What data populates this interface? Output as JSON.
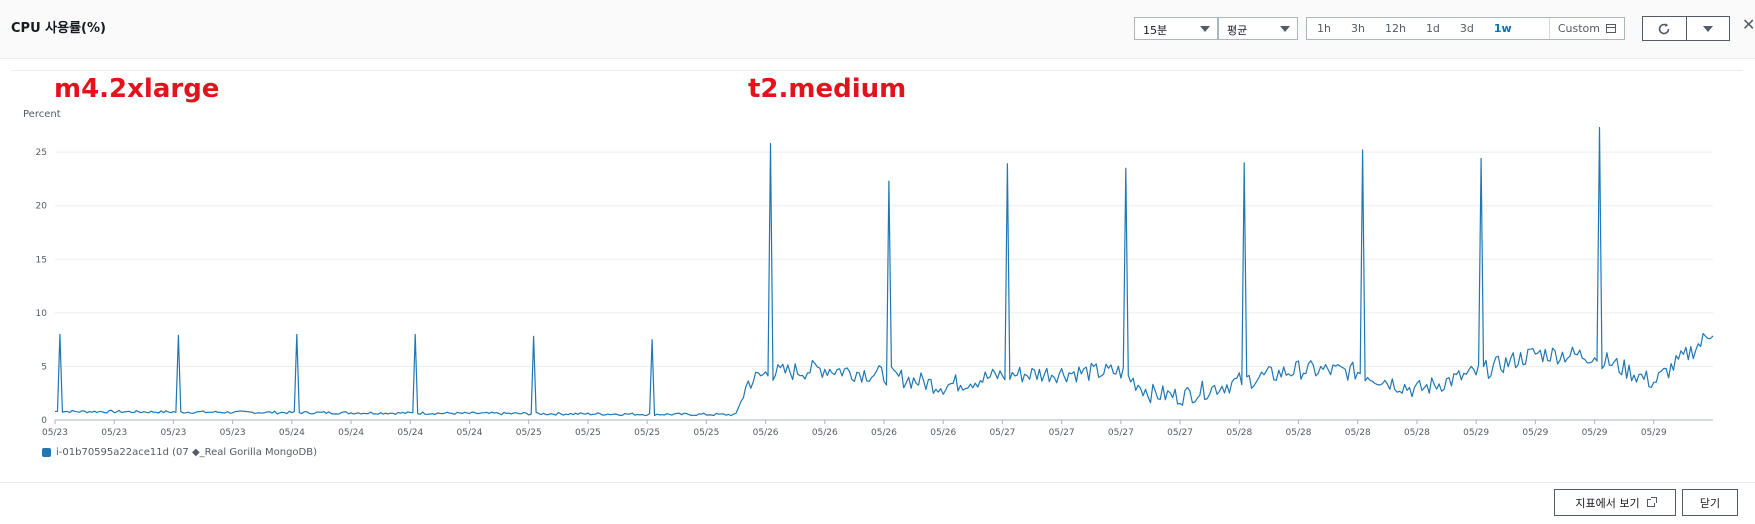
{
  "header": {
    "title": "CPU 사용률(%)",
    "period_select": "15분",
    "stat_select": "평균",
    "ranges": [
      "1h",
      "3h",
      "12h",
      "1d",
      "3d",
      "1w"
    ],
    "active_range": "1w",
    "custom_label": "Custom"
  },
  "annotations": {
    "left": "m4.2xlarge",
    "right": "t2.medium"
  },
  "footer": {
    "view_in_metrics": "지표에서 보기",
    "close": "닫기"
  },
  "colors": {
    "series": "#1f77b4",
    "annotation": "#e3121c",
    "active_range": "#0073bb"
  },
  "chart_data": {
    "type": "line",
    "ylabel": "Percent",
    "ylim": [
      0,
      28
    ],
    "yticks": [
      0,
      5,
      10,
      15,
      20,
      25
    ],
    "xticks": [
      "05/23",
      "05/23",
      "05/23",
      "05/23",
      "05/24",
      "05/24",
      "05/24",
      "05/24",
      "05/25",
      "05/25",
      "05/25",
      "05/25",
      "05/26",
      "05/26",
      "05/26",
      "05/26",
      "05/27",
      "05/27",
      "05/27",
      "05/27",
      "05/28",
      "05/28",
      "05/28",
      "05/28",
      "05/29",
      "05/29",
      "05/29",
      "05/29"
    ],
    "x_range": [
      0,
      28
    ],
    "legend_position": "bottom-left",
    "series": [
      {
        "name": "i-01b70595a22ace11d (07 ◆_Real Gorilla MongoDB)",
        "spikes": [
          [
            0.1,
            8.0
          ],
          [
            2.1,
            7.9
          ],
          [
            4.1,
            8.0
          ],
          [
            6.1,
            8.0
          ],
          [
            8.1,
            7.8
          ],
          [
            10.1,
            7.5
          ],
          [
            12.1,
            25.8
          ],
          [
            14.1,
            22.3
          ],
          [
            16.1,
            23.9
          ],
          [
            18.1,
            23.5
          ],
          [
            20.1,
            24.0
          ],
          [
            22.1,
            25.2
          ],
          [
            24.1,
            24.4
          ],
          [
            26.1,
            27.3
          ]
        ],
        "baseline": [
          [
            0,
            0.8
          ],
          [
            11.5,
            0.5
          ],
          [
            11.7,
            3.5
          ],
          [
            12.0,
            4.3
          ],
          [
            13.0,
            4.8
          ],
          [
            14.0,
            4.2
          ],
          [
            15.0,
            3.2
          ],
          [
            16.0,
            4.2
          ],
          [
            17.0,
            4.4
          ],
          [
            18.0,
            4.5
          ],
          [
            18.5,
            2.5
          ],
          [
            19.0,
            2.2
          ],
          [
            20.0,
            3.6
          ],
          [
            21.0,
            4.7
          ],
          [
            22.0,
            4.5
          ],
          [
            23.0,
            2.8
          ],
          [
            24.0,
            4.4
          ],
          [
            25.0,
            6.2
          ],
          [
            26.0,
            6.0
          ],
          [
            27.0,
            3.5
          ],
          [
            27.8,
            7.2
          ],
          [
            28.0,
            8.5
          ]
        ]
      }
    ]
  }
}
